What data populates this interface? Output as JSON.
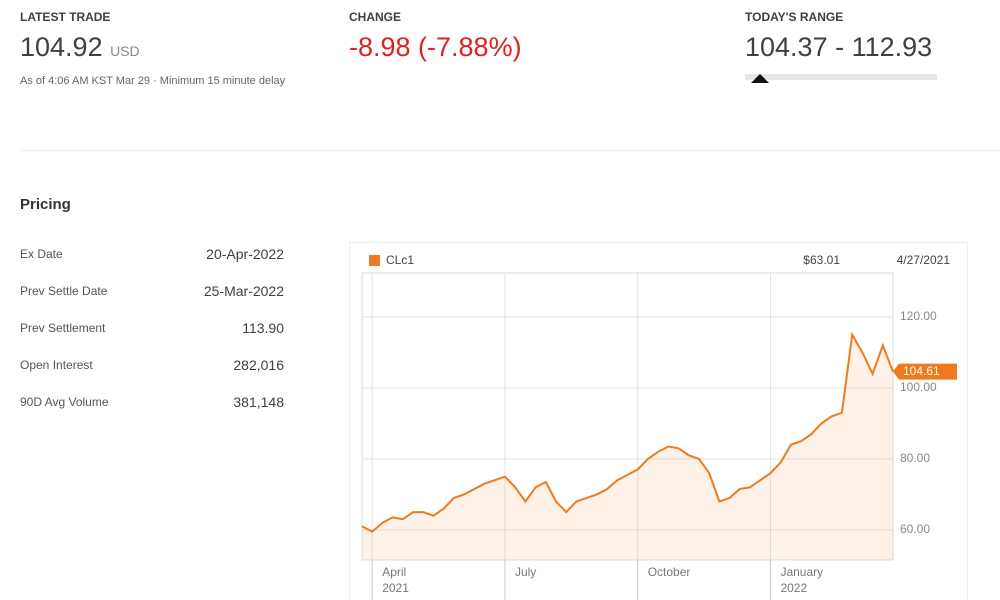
{
  "header": {
    "latest_trade": {
      "label": "LATEST TRADE",
      "value": "104.92",
      "currency": "USD",
      "note": "As of 4:06 AM KST Mar 29 · Minimum 15 minute delay"
    },
    "change": {
      "label": "CHANGE",
      "value": "-8.98 (-7.88%)"
    },
    "range": {
      "label": "TODAY'S RANGE",
      "value": "104.37 - 112.93"
    }
  },
  "pricing": {
    "title": "Pricing",
    "rows": [
      [
        "Ex Date",
        "20-Apr-2022"
      ],
      [
        "Prev Settle Date",
        "25-Mar-2022"
      ],
      [
        "Prev Settlement",
        "113.90"
      ],
      [
        "Open Interest",
        "282,016"
      ],
      [
        "90D Avg Volume",
        "381,148"
      ]
    ]
  },
  "chart_data": {
    "type": "line",
    "tooltip_value": "$63.01",
    "tooltip_date": "4/27/2021",
    "last_label": 104.61,
    "categories": [
      null,
      "April 2021",
      null,
      null,
      null,
      null,
      null,
      null,
      null,
      null,
      null,
      null,
      null,
      null,
      "July",
      null,
      null,
      null,
      null,
      null,
      null,
      null,
      null,
      null,
      null,
      null,
      null,
      "October",
      null,
      null,
      null,
      null,
      null,
      null,
      null,
      null,
      null,
      null,
      null,
      null,
      "January 2022",
      null,
      null,
      null,
      null,
      null,
      null,
      null,
      null,
      null,
      null,
      null,
      null
    ],
    "series": [
      {
        "name": "CLc1",
        "color": "#f07a1e",
        "values": [
          61,
          59.5,
          62,
          63.5,
          63,
          65,
          65,
          64,
          66,
          69,
          70,
          71.5,
          73,
          74,
          75,
          72,
          68,
          72,
          73.5,
          68,
          65,
          68,
          69,
          70,
          71.5,
          74,
          75.5,
          77,
          80,
          82,
          83.5,
          83,
          81,
          80,
          76,
          68,
          69,
          71.5,
          72,
          74,
          76,
          79,
          84,
          85,
          87,
          90,
          92,
          93,
          115,
          110,
          104,
          112,
          104.61
        ]
      }
    ],
    "ylim": [
      51.5,
      132.4
    ],
    "yticks": [
      {
        "value": 60,
        "label": "60.00"
      },
      {
        "value": 80,
        "label": "80.00"
      },
      {
        "value": 100,
        "label": "100.00"
      },
      {
        "value": 120,
        "label": "120.00"
      }
    ],
    "grid": true
  }
}
